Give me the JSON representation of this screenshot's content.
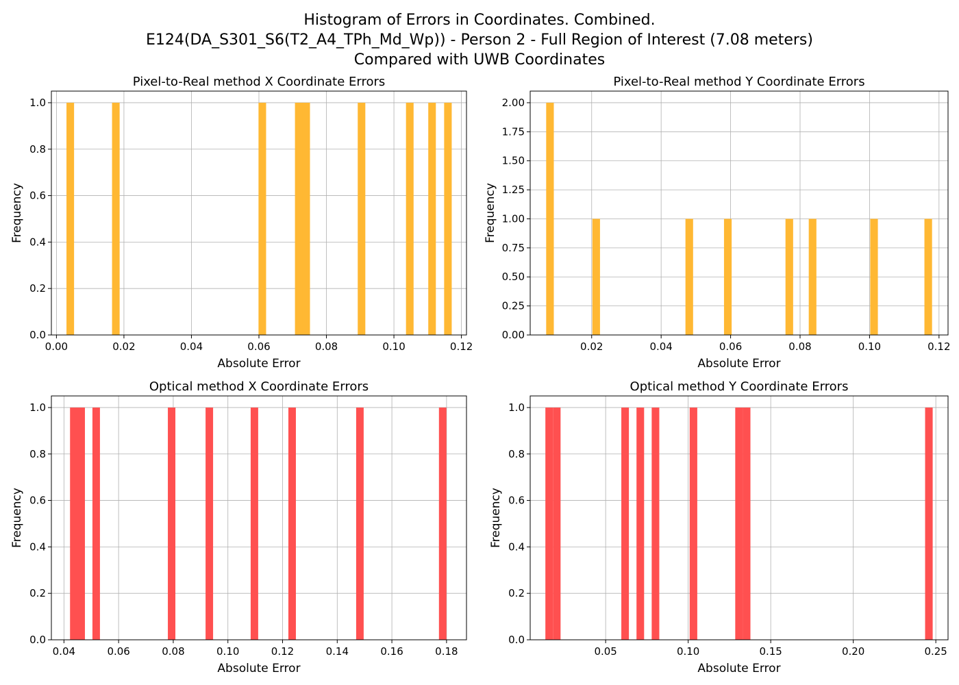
{
  "suptitle": {
    "line1": "Histogram of Errors in Coordinates. Combined.",
    "line2": "E124(DA_S301_S6(T2_A4_TPh_Md_Wp)) - Person 2 - Full Region of Interest (7.08 meters)",
    "line3": "Compared with UWB Coordinates"
  },
  "chart_data": [
    {
      "type": "bar",
      "title": "Pixel-to-Real method X Coordinate Errors",
      "xlabel": "Absolute Error",
      "ylabel": "Frequency",
      "color": "#FFB833",
      "grid": true,
      "xlim": [
        -0.0015,
        0.1215
      ],
      "ylim": [
        0,
        1.05
      ],
      "xticks": [
        0.0,
        0.02,
        0.04,
        0.06,
        0.08,
        0.1,
        0.12
      ],
      "xtick_labels": [
        "0.00",
        "0.02",
        "0.04",
        "0.06",
        "0.08",
        "0.10",
        "0.12"
      ],
      "yticks": [
        0.0,
        0.2,
        0.4,
        0.6,
        0.8,
        1.0
      ],
      "ytick_labels": [
        "0.0",
        "0.2",
        "0.4",
        "0.6",
        "0.8",
        "1.0"
      ],
      "bin_width": 0.00225,
      "bars": [
        {
          "x": 0.0041,
          "count": 1
        },
        {
          "x": 0.0176,
          "count": 1
        },
        {
          "x": 0.061,
          "count": 1
        },
        {
          "x": 0.0718,
          "count": 1
        },
        {
          "x": 0.074,
          "count": 1
        },
        {
          "x": 0.0904,
          "count": 1
        },
        {
          "x": 0.1047,
          "count": 1
        },
        {
          "x": 0.1113,
          "count": 1
        },
        {
          "x": 0.116,
          "count": 1
        }
      ]
    },
    {
      "type": "bar",
      "title": "Pixel-to-Real method Y Coordinate Errors",
      "xlabel": "Absolute Error",
      "ylabel": "Frequency",
      "color": "#FFB833",
      "grid": true,
      "xlim": [
        0.0023,
        0.1226
      ],
      "ylim": [
        0,
        2.1
      ],
      "xticks": [
        0.02,
        0.04,
        0.06,
        0.08,
        0.1,
        0.12
      ],
      "xtick_labels": [
        "0.02",
        "0.04",
        "0.06",
        "0.08",
        "0.10",
        "0.12"
      ],
      "yticks": [
        0.0,
        0.25,
        0.5,
        0.75,
        1.0,
        1.25,
        1.5,
        1.75,
        2.0
      ],
      "ytick_labels": [
        "0.00",
        "0.25",
        "0.50",
        "0.75",
        "1.00",
        "1.25",
        "1.50",
        "1.75",
        "2.00"
      ],
      "bin_width": 0.0022,
      "bars": [
        {
          "x": 0.008,
          "count": 2
        },
        {
          "x": 0.0213,
          "count": 1
        },
        {
          "x": 0.0481,
          "count": 1
        },
        {
          "x": 0.0592,
          "count": 1
        },
        {
          "x": 0.0769,
          "count": 1
        },
        {
          "x": 0.0836,
          "count": 1
        },
        {
          "x": 0.1013,
          "count": 1
        },
        {
          "x": 0.1169,
          "count": 1
        }
      ]
    },
    {
      "type": "bar",
      "title": "Optical method X Coordinate Errors",
      "xlabel": "Absolute Error",
      "ylabel": "Frequency",
      "color": "#FF5050",
      "grid": true,
      "xlim": [
        0.0354,
        0.1873
      ],
      "ylim": [
        0,
        1.05
      ],
      "xticks": [
        0.04,
        0.06,
        0.08,
        0.1,
        0.12,
        0.14,
        0.16,
        0.18
      ],
      "xtick_labels": [
        "0.04",
        "0.06",
        "0.08",
        "0.10",
        "0.12",
        "0.14",
        "0.16",
        "0.18"
      ],
      "yticks": [
        0.0,
        0.2,
        0.4,
        0.6,
        0.8,
        1.0
      ],
      "ytick_labels": [
        "0.0",
        "0.2",
        "0.4",
        "0.6",
        "0.8",
        "1.0"
      ],
      "bin_width": 0.00275,
      "bars": [
        {
          "x": 0.0436,
          "count": 1
        },
        {
          "x": 0.0463,
          "count": 1
        },
        {
          "x": 0.0518,
          "count": 1
        },
        {
          "x": 0.0794,
          "count": 1
        },
        {
          "x": 0.0932,
          "count": 1
        },
        {
          "x": 0.1097,
          "count": 1
        },
        {
          "x": 0.1235,
          "count": 1
        },
        {
          "x": 0.1483,
          "count": 1
        },
        {
          "x": 0.1786,
          "count": 1
        }
      ]
    },
    {
      "type": "bar",
      "title": "Optical method Y Coordinate Errors",
      "xlabel": "Absolute Error",
      "ylabel": "Frequency",
      "color": "#FF5050",
      "grid": true,
      "xlim": [
        0.0043,
        0.2574
      ],
      "ylim": [
        0,
        1.05
      ],
      "xticks": [
        0.05,
        0.1,
        0.15,
        0.2,
        0.25
      ],
      "xtick_labels": [
        "0.05",
        "0.10",
        "0.15",
        "0.20",
        "0.25"
      ],
      "yticks": [
        0.0,
        0.2,
        0.4,
        0.6,
        0.8,
        1.0
      ],
      "ytick_labels": [
        "0.0",
        "0.2",
        "0.4",
        "0.6",
        "0.8",
        "1.0"
      ],
      "bin_width": 0.0046,
      "bars": [
        {
          "x": 0.0158,
          "count": 1
        },
        {
          "x": 0.0204,
          "count": 1
        },
        {
          "x": 0.0618,
          "count": 1
        },
        {
          "x": 0.071,
          "count": 1
        },
        {
          "x": 0.0802,
          "count": 1
        },
        {
          "x": 0.1032,
          "count": 1
        },
        {
          "x": 0.1308,
          "count": 1
        },
        {
          "x": 0.1354,
          "count": 1
        },
        {
          "x": 0.2458,
          "count": 1
        }
      ]
    }
  ]
}
